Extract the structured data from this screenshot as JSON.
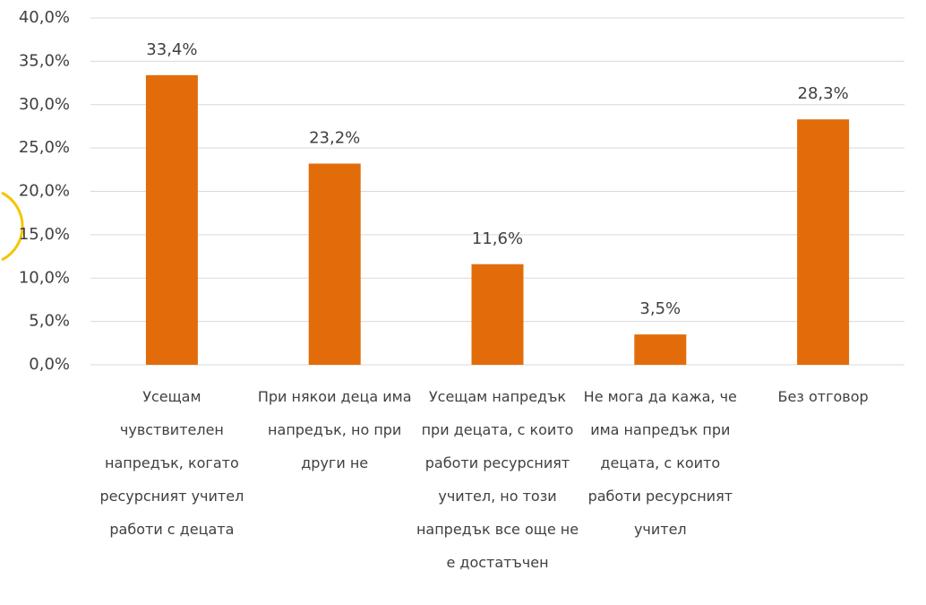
{
  "chart_data": {
    "type": "bar",
    "categories": [
      "Усещам чувствителен напредък, когато ресурсният учител работи с децата",
      "При някои деца има напредък, но при други не",
      "Усещам напредък при децата, с които работи ресурсният учител, но този напредък все още не е достатъчен",
      "Не мога да кажа, че има напредък при децата, с които работи ресурсният учител",
      "Без отговор"
    ],
    "values": [
      33.4,
      23.2,
      11.6,
      3.5,
      28.3
    ],
    "value_labels": [
      "33,4%",
      "23,2%",
      "11,6%",
      "3,5%",
      "28,3%"
    ],
    "color": "#e36c0a",
    "ylim": [
      0,
      40
    ],
    "yticks": [
      {
        "value": 0,
        "label": "0,0%"
      },
      {
        "value": 5,
        "label": "5,0%"
      },
      {
        "value": 10,
        "label": "10,0%"
      },
      {
        "value": 15,
        "label": "15,0%"
      },
      {
        "value": 20,
        "label": "20,0%"
      },
      {
        "value": 25,
        "label": "25,0%"
      },
      {
        "value": 30,
        "label": "30,0%"
      },
      {
        "value": 35,
        "label": "35,0%"
      },
      {
        "value": 40,
        "label": "40,0%"
      }
    ],
    "grid": true
  }
}
